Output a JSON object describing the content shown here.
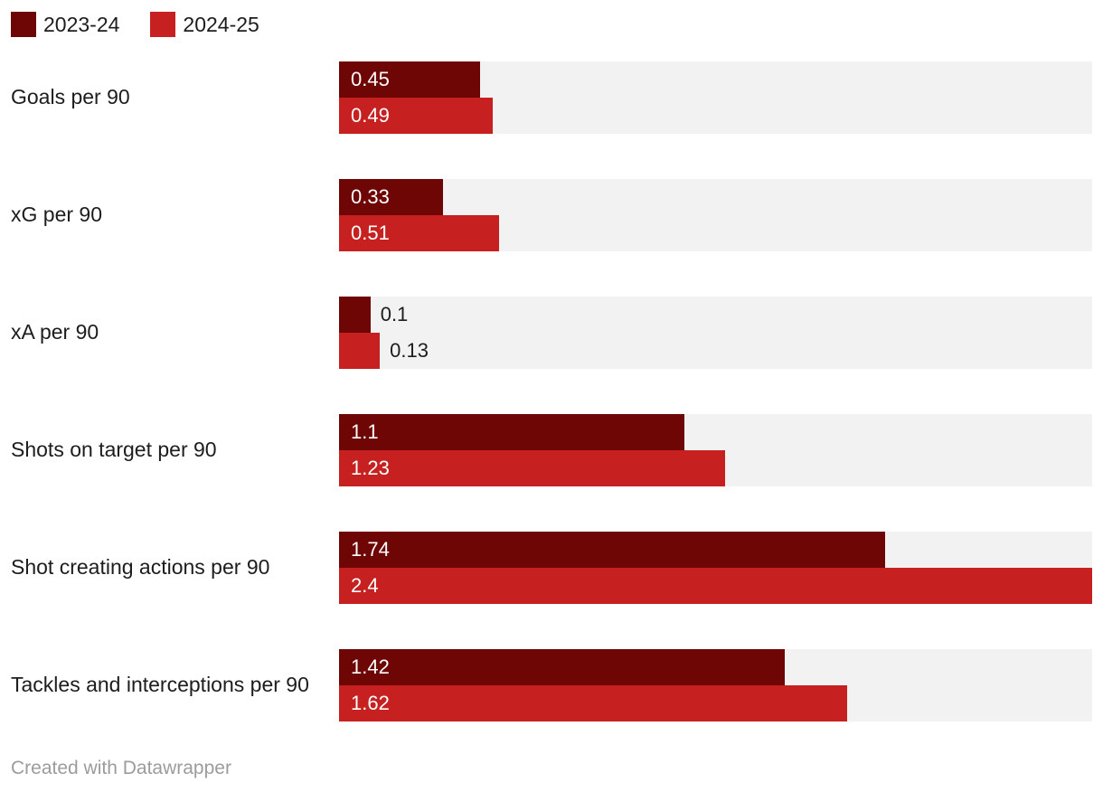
{
  "chart_data": {
    "type": "bar",
    "orientation": "horizontal",
    "title": "",
    "categories": [
      "Goals per 90",
      "xG per 90",
      "xA per 90",
      "Shots on target per 90",
      "Shot creating actions per 90",
      "Tackles and interceptions per 90"
    ],
    "series": [
      {
        "name": "2023-24",
        "color": "#6e0606",
        "values": [
          0.45,
          0.33,
          0.1,
          1.1,
          1.74,
          1.42
        ]
      },
      {
        "name": "2024-25",
        "color": "#c62020",
        "values": [
          0.49,
          0.51,
          0.13,
          1.23,
          2.4,
          1.62
        ]
      }
    ],
    "xlim": [
      0,
      2.4
    ],
    "grid": false,
    "legend_position": "top-left",
    "track_color": "#f2f2f2",
    "value_label_style": "inside start of bar, outside right for short bars"
  },
  "legend": {
    "items": [
      {
        "label": "2023-24",
        "color": "#6e0606"
      },
      {
        "label": "2024-25",
        "color": "#c62020"
      }
    ]
  },
  "footer": {
    "credit": "Created with Datawrapper"
  },
  "colors": {
    "bar_dark": "#6e0606",
    "bar_red": "#c62020",
    "track": "#f2f2f2",
    "text": "#1d1d1d",
    "value_text_inside": "#ffffff",
    "footer_text": "#9c9c9c",
    "background": "#ffffff"
  }
}
